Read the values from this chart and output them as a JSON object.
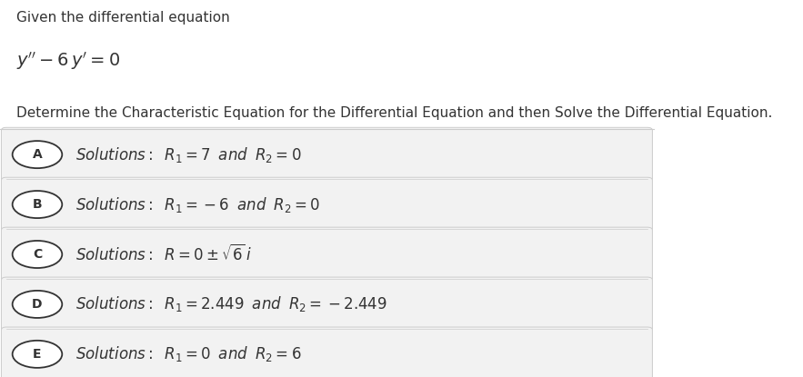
{
  "background_color": "#ffffff",
  "header_text": "Given the differential equation",
  "instruction": "Determine the Characteristic Equation for the Differential Equation and then Solve the Differential Equation.",
  "option_box_color": "#f2f2f2",
  "option_box_edge_color": "#cccccc",
  "circle_color": "#ffffff",
  "circle_edge_color": "#333333",
  "text_color": "#333333",
  "font_size_header": 11,
  "font_size_eq": 14,
  "font_size_instruction": 11,
  "font_size_option": 12,
  "option_labels": [
    "A",
    "B",
    "C",
    "D",
    "E"
  ],
  "option_texts": [
    "$\\mathit{Solutions:}\\;\\; R_{1} = 7 \\;\\; \\mathit{and} \\;\\; R_{2} = 0$",
    "$\\mathit{Solutions:}\\;\\; R_{1} = -6 \\;\\; \\mathit{and} \\;\\; R_{2} = 0$",
    "$\\mathit{Solutions:}\\;\\; R = 0 \\pm \\sqrt{6}\\, i$",
    "$\\mathit{Solutions:}\\;\\; R_{1} = 2.449 \\;\\; \\mathit{and} \\;\\; R_{2} = -2.449$",
    "$\\mathit{Solutions:}\\;\\; R_{1} = 0 \\;\\; \\mathit{and} \\;\\; R_{2} = 6$"
  ]
}
